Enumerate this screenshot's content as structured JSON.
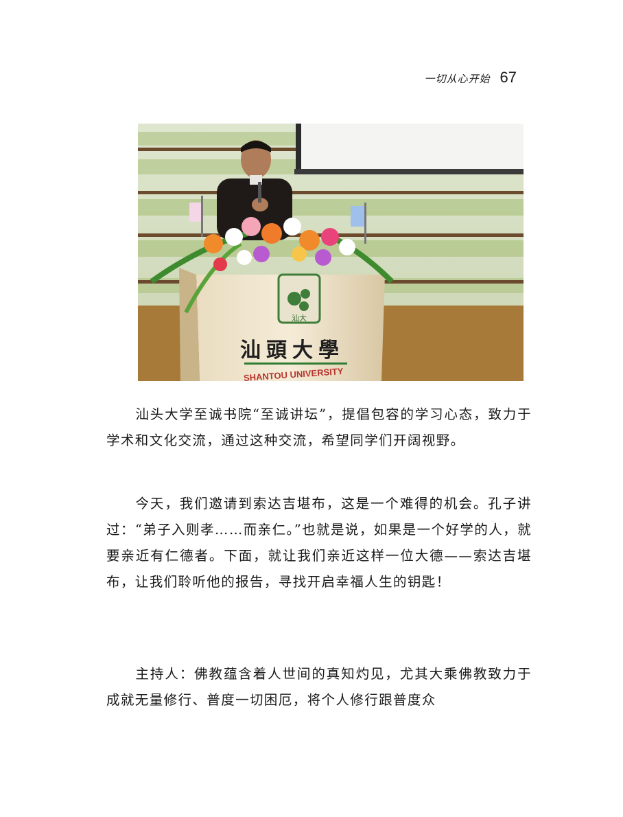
{
  "header": {
    "title": "一切从心开始",
    "page_number": "67"
  },
  "photo": {
    "podium_name_cn": "汕頭大學",
    "podium_name_en": "SHANTOU UNIVERSITY",
    "emblem_text": "汕大"
  },
  "paragraphs": [
    "汕头大学至诚书院“至诚讲坛”，提倡包容的学习心态，致力于学术和文化交流，通过这种交流，希望同学们开阔视野。",
    "今天，我们邀请到索达吉堪布，这是一个难得的机会。孔子讲过：“弟子入则孝……而亲仁。”也就是说，如果是一个好学的人，就要亲近有仁德者。下面，就让我们亲近这样一位大德——索达吉堪布，让我们聆听他的报告，寻找开启幸福人生的钥匙！",
    "主持人：佛教蕴含着人世间的真知灼见，尤其大乘佛教致力于成就无量修行、普度一切困厄，将个人修行跟普度众"
  ]
}
